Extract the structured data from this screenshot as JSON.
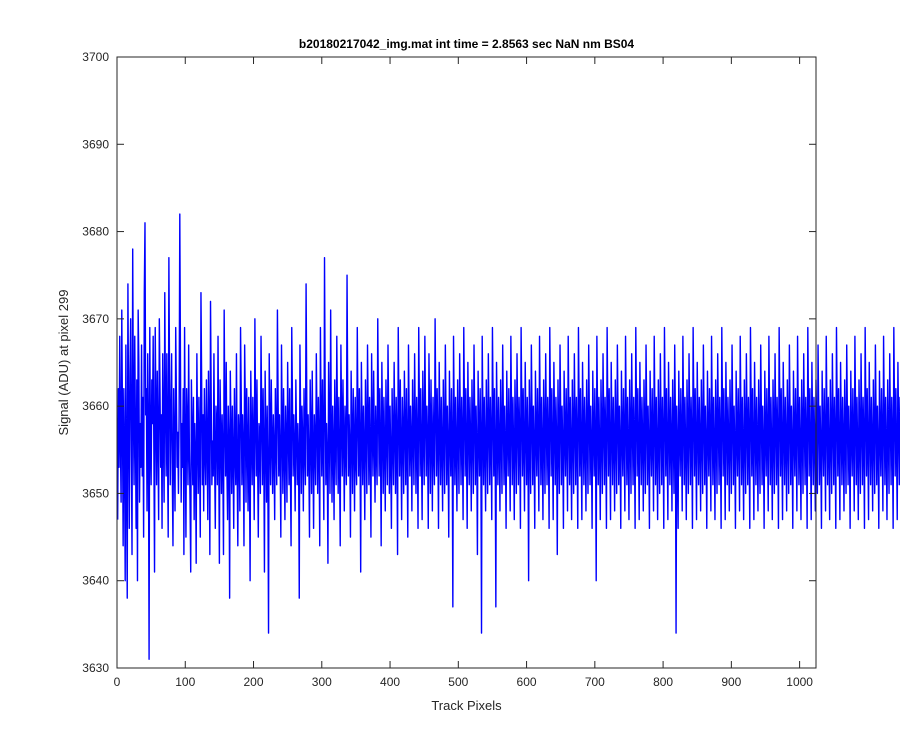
{
  "chart_data": {
    "type": "line",
    "title": "b20180217042_img.mat int time = 2.8563 sec  NaN nm BS04",
    "xlabel": "Track Pixels",
    "ylabel": "Signal (ADU) at pixel 299",
    "xlim": [
      0,
      1024
    ],
    "ylim": [
      3630,
      3700
    ],
    "xticks": [
      0,
      100,
      200,
      300,
      400,
      500,
      600,
      700,
      800,
      900,
      1000
    ],
    "yticks": [
      3630,
      3640,
      3650,
      3660,
      3670,
      3680,
      3690,
      3700
    ],
    "grid": false,
    "legend": "none",
    "line_color": "#0000ff",
    "x_start": 1,
    "x_step": 1,
    "series": [
      {
        "values": [
          3647,
          3662,
          3653,
          3668,
          3656,
          3649,
          3671,
          3659,
          3644,
          3662,
          3655,
          3640,
          3667,
          3651,
          3638,
          3674,
          3659,
          3646,
          3664,
          3670,
          3655,
          3643,
          3678,
          3660,
          3651,
          3668,
          3657,
          3646,
          3663,
          3640,
          3671,
          3665,
          3649,
          3658,
          3653,
          3667,
          3652,
          3661,
          3645,
          3673,
          3681,
          3659,
          3662,
          3648,
          3666,
          3658,
          3631,
          3669,
          3656,
          3651,
          3663,
          3658,
          3668,
          3655,
          3641,
          3669,
          3660,
          3651,
          3664,
          3656,
          3647,
          3670,
          3662,
          3653,
          3659,
          3646,
          3666,
          3657,
          3649,
          3673,
          3660,
          3652,
          3666,
          3655,
          3645,
          3677,
          3663,
          3651,
          3659,
          3666,
          3652,
          3644,
          3662,
          3655,
          3648,
          3669,
          3661,
          3653,
          3657,
          3650,
          3659,
          3682,
          3665,
          3649,
          3658,
          3653,
          3662,
          3643,
          3669,
          3656,
          3645,
          3662,
          3658,
          3651,
          3667,
          3655,
          3649,
          3641,
          3663,
          3657,
          3651,
          3661,
          3647,
          3658,
          3654,
          3642,
          3666,
          3657,
          3650,
          3661,
          3654,
          3645,
          3673,
          3663,
          3651,
          3659,
          3648,
          3662,
          3655,
          3651,
          3663,
          3656,
          3647,
          3664,
          3658,
          3643,
          3672,
          3661,
          3651,
          3656,
          3652,
          3666,
          3654,
          3646,
          3660,
          3658,
          3651,
          3668,
          3655,
          3642,
          3663,
          3657,
          3650,
          3659,
          3654,
          3643,
          3671,
          3659,
          3652,
          3665,
          3653,
          3647,
          3660,
          3656,
          3638,
          3664,
          3657,
          3650,
          3660,
          3654,
          3646,
          3662,
          3655,
          3651,
          3666,
          3653,
          3644,
          3659,
          3656,
          3648,
          3669,
          3661,
          3651,
          3659,
          3655,
          3644,
          3667,
          3660,
          3649,
          3662,
          3656,
          3648,
          3661,
          3653,
          3640,
          3664,
          3657,
          3651,
          3661,
          3655,
          3647,
          3670,
          3659,
          3652,
          3663,
          3654,
          3645,
          3658,
          3657,
          3650,
          3668,
          3659,
          3651,
          3662,
          3655,
          3641,
          3664,
          3657,
          3649,
          3660,
          3652,
          3634,
          3666,
          3658,
          3651,
          3663,
          3656,
          3650,
          3659,
          3655,
          3647,
          3662,
          3656,
          3651,
          3671,
          3661,
          3652,
          3659,
          3654,
          3645,
          3667,
          3658,
          3650,
          3662,
          3655,
          3647,
          3660,
          3656,
          3649,
          3665,
          3657,
          3651,
          3662,
          3653,
          3644,
          3669,
          3661,
          3652,
          3659,
          3655,
          3648,
          3663,
          3657,
          3651,
          3658,
          3654,
          3638,
          3667,
          3659,
          3650,
          3660,
          3656,
          3648,
          3662,
          3655,
          3651,
          3674,
          3661,
          3652,
          3659,
          3654,
          3645,
          3663,
          3657,
          3650,
          3664,
          3655,
          3646,
          3659,
          3656,
          3651,
          3666,
          3658,
          3650,
          3661,
          3656,
          3644,
          3669,
          3659,
          3652,
          3663,
          3655,
          3647,
          3677,
          3661,
          3651,
          3658,
          3654,
          3642,
          3665,
          3658,
          3650,
          3671,
          3657,
          3649,
          3660,
          3655,
          3647,
          3663,
          3656,
          3651,
          3668,
          3658,
          3650,
          3661,
          3654,
          3644,
          3667,
          3659,
          3652,
          3663,
          3656,
          3648,
          3660,
          3655,
          3651,
          3675,
          3661,
          3652,
          3659,
          3655,
          3645,
          3664,
          3657,
          3650,
          3662,
          3656,
          3648,
          3661,
          3654,
          3651,
          3669,
          3659,
          3652,
          3662,
          3656,
          3641,
          3665,
          3658,
          3651,
          3660,
          3655,
          3647,
          3663,
          3657,
          3650,
          3667,
          3659,
          3651,
          3661,
          3655,
          3645,
          3666,
          3658,
          3652,
          3664,
          3656,
          3649,
          3660,
          3655,
          3651,
          3670,
          3660,
          3652,
          3662,
          3656,
          3644,
          3665,
          3658,
          3650,
          3661,
          3655,
          3648,
          3663,
          3657,
          3651,
          3667,
          3659,
          3650,
          3660,
          3654,
          3646,
          3662,
          3656,
          3651,
          3665,
          3657,
          3650,
          3661,
          3656,
          3643,
          3669,
          3660,
          3652,
          3663,
          3655,
          3647,
          3661,
          3657,
          3650,
          3664,
          3658,
          3651,
          3662,
          3655,
          3645,
          3667,
          3659,
          3652,
          3660,
          3656,
          3648,
          3663,
          3657,
          3651,
          3666,
          3658,
          3650,
          3661,
          3656,
          3646,
          3669,
          3660,
          3652,
          3662,
          3655,
          3647,
          3664,
          3657,
          3651,
          3668,
          3659,
          3652,
          3660,
          3656,
          3646,
          3666,
          3658,
          3650,
          3663,
          3656,
          3648,
          3661,
          3655,
          3651,
          3670,
          3660,
          3652,
          3662,
          3656,
          3646,
          3665,
          3658,
          3651,
          3661,
          3655,
          3648,
          3663,
          3657,
          3650,
          3667,
          3659,
          3651,
          3660,
          3655,
          3645,
          3664,
          3657,
          3652,
          3662,
          3656,
          3637,
          3668,
          3659,
          3651,
          3661,
          3655,
          3648,
          3663,
          3657,
          3650,
          3666,
          3658,
          3651,
          3661,
          3656,
          3647,
          3669,
          3660,
          3652,
          3662,
          3655,
          3646,
          3665,
          3658,
          3651,
          3661,
          3656,
          3648,
          3663,
          3657,
          3650,
          3667,
          3659,
          3651,
          3660,
          3655,
          3643,
          3664,
          3657,
          3652,
          3662,
          3656,
          3634,
          3668,
          3659,
          3651,
          3661,
          3655,
          3648,
          3663,
          3657,
          3650,
          3666,
          3658,
          3651,
          3661,
          3656,
          3647,
          3669,
          3660,
          3652,
          3662,
          3655,
          3637,
          3665,
          3658,
          3651,
          3661,
          3656,
          3648,
          3663,
          3657,
          3650,
          3667,
          3659,
          3651,
          3660,
          3655,
          3646,
          3664,
          3657,
          3652,
          3662,
          3656,
          3648,
          3668,
          3659,
          3651,
          3661,
          3655,
          3647,
          3663,
          3657,
          3650,
          3666,
          3658,
          3651,
          3661,
          3656,
          3646,
          3669,
          3660,
          3652,
          3662,
          3655,
          3648,
          3665,
          3658,
          3651,
          3661,
          3656,
          3640,
          3663,
          3657,
          3650,
          3667,
          3659,
          3651,
          3660,
          3655,
          3646,
          3664,
          3657,
          3652,
          3662,
          3656,
          3648,
          3668,
          3659,
          3651,
          3661,
          3655,
          3647,
          3663,
          3657,
          3650,
          3666,
          3658,
          3651,
          3661,
          3656,
          3646,
          3669,
          3660,
          3652,
          3662,
          3655,
          3647,
          3665,
          3658,
          3651,
          3661,
          3656,
          3643,
          3663,
          3657,
          3650,
          3667,
          3659,
          3651,
          3660,
          3655,
          3646,
          3664,
          3657,
          3652,
          3662,
          3656,
          3648,
          3668,
          3659,
          3651,
          3661,
          3655,
          3647,
          3663,
          3657,
          3650,
          3666,
          3658,
          3651,
          3661,
          3656,
          3646,
          3669,
          3660,
          3652,
          3662,
          3655,
          3647,
          3665,
          3658,
          3651,
          3661,
          3656,
          3648,
          3663,
          3657,
          3650,
          3667,
          3659,
          3651,
          3660,
          3655,
          3646,
          3664,
          3657,
          3652,
          3662,
          3656,
          3640,
          3668,
          3659,
          3651,
          3661,
          3655,
          3647,
          3663,
          3657,
          3650,
          3666,
          3658,
          3651,
          3661,
          3656,
          3646,
          3669,
          3660,
          3652,
          3662,
          3655,
          3647,
          3665,
          3658,
          3651,
          3661,
          3656,
          3648,
          3663,
          3657,
          3650,
          3667,
          3659,
          3651,
          3660,
          3655,
          3646,
          3664,
          3657,
          3652,
          3662,
          3656,
          3648,
          3668,
          3659,
          3651,
          3661,
          3655,
          3647,
          3663,
          3657,
          3650,
          3666,
          3658,
          3651,
          3661,
          3656,
          3646,
          3669,
          3660,
          3652,
          3662,
          3655,
          3647,
          3665,
          3658,
          3651,
          3661,
          3656,
          3648,
          3663,
          3657,
          3650,
          3667,
          3659,
          3651,
          3660,
          3655,
          3646,
          3664,
          3657,
          3652,
          3662,
          3656,
          3648,
          3668,
          3659,
          3651,
          3661,
          3655,
          3647,
          3663,
          3657,
          3650,
          3666,
          3658,
          3651,
          3661,
          3656,
          3646,
          3669,
          3660,
          3652,
          3662,
          3655,
          3647,
          3665,
          3658,
          3651,
          3661,
          3656,
          3648,
          3663,
          3657,
          3650,
          3667,
          3659,
          3634,
          3660,
          3655,
          3646,
          3664,
          3657,
          3652,
          3662,
          3656,
          3648,
          3668,
          3659,
          3651,
          3661,
          3655,
          3647,
          3663,
          3657,
          3650,
          3666,
          3658,
          3651,
          3661,
          3656,
          3646,
          3669,
          3660,
          3652,
          3662,
          3655,
          3647,
          3665,
          3658,
          3651,
          3661,
          3656,
          3648,
          3663,
          3657,
          3650,
          3667,
          3659,
          3651,
          3660,
          3655,
          3646,
          3664,
          3657,
          3652,
          3662,
          3656,
          3648,
          3668,
          3659,
          3651,
          3661,
          3655,
          3647,
          3663,
          3657,
          3650,
          3666,
          3658,
          3651,
          3661,
          3656,
          3646,
          3669,
          3660,
          3652,
          3662,
          3655,
          3647,
          3665,
          3658,
          3651,
          3661,
          3656,
          3648,
          3663,
          3657,
          3650,
          3667,
          3659,
          3651,
          3660,
          3655,
          3646,
          3664,
          3657,
          3652,
          3662,
          3656,
          3648,
          3668,
          3659,
          3651,
          3661,
          3655,
          3647,
          3663,
          3657,
          3650,
          3666,
          3658,
          3651,
          3661,
          3656,
          3646,
          3669,
          3660,
          3652,
          3662,
          3655,
          3647,
          3665,
          3658,
          3651,
          3661,
          3656,
          3648,
          3663,
          3657,
          3650,
          3667,
          3659,
          3651,
          3660,
          3655,
          3646,
          3664,
          3657,
          3652,
          3662,
          3656,
          3648,
          3668,
          3659,
          3651,
          3661,
          3655,
          3647,
          3663,
          3657,
          3650,
          3666,
          3658,
          3651,
          3661,
          3656,
          3646,
          3669,
          3660,
          3652,
          3662,
          3655,
          3647,
          3665,
          3658,
          3651,
          3661,
          3656,
          3648,
          3663,
          3657,
          3650,
          3667,
          3659,
          3651,
          3660,
          3655,
          3646,
          3664,
          3657,
          3652,
          3662,
          3656,
          3648,
          3668,
          3659,
          3651,
          3661,
          3655,
          3647,
          3663,
          3657,
          3650,
          3666,
          3658,
          3651,
          3661,
          3656,
          3646,
          3669,
          3660,
          3652,
          3662,
          3655,
          3647,
          3665,
          3658,
          3651,
          3661,
          3656,
          3648,
          3663,
          3657,
          3650,
          3667,
          3659,
          3651,
          3660,
          3655,
          3646,
          3664,
          3657,
          3652,
          3662,
          3656,
          3648,
          3668,
          3659,
          3651,
          3661,
          3655,
          3647,
          3663,
          3657,
          3650,
          3666,
          3658,
          3651,
          3661,
          3656,
          3646,
          3669,
          3660,
          3652,
          3662,
          3655,
          3647,
          3665,
          3658,
          3651,
          3661,
          3656,
          3648,
          3663,
          3657,
          3650,
          3667,
          3659,
          3651,
          3660,
          3655,
          3646,
          3664,
          3657,
          3652,
          3662,
          3656,
          3648,
          3668,
          3659,
          3651,
          3661,
          3655,
          3647,
          3663,
          3657,
          3650,
          3666,
          3658,
          3651,
          3661,
          3656,
          3646,
          3669,
          3660,
          3652,
          3662,
          3655,
          3647,
          3665,
          3658,
          3651,
          3661,
          3656,
          3648,
          3663,
          3657,
          3650,
          3667,
          3659,
          3651,
          3660,
          3655,
          3646,
          3664,
          3657,
          3652,
          3662,
          3656,
          3648,
          3668,
          3659,
          3651,
          3661,
          3655,
          3647,
          3663,
          3657,
          3650,
          3666,
          3658,
          3651,
          3661,
          3656,
          3646,
          3669,
          3660,
          3652,
          3662,
          3655,
          3647,
          3665,
          3658,
          3651,
          3661,
          3656,
          3648,
          3663,
          3657,
          3650,
          3667,
          3659,
          3651,
          3660,
          3655,
          3646
        ]
      }
    ]
  }
}
